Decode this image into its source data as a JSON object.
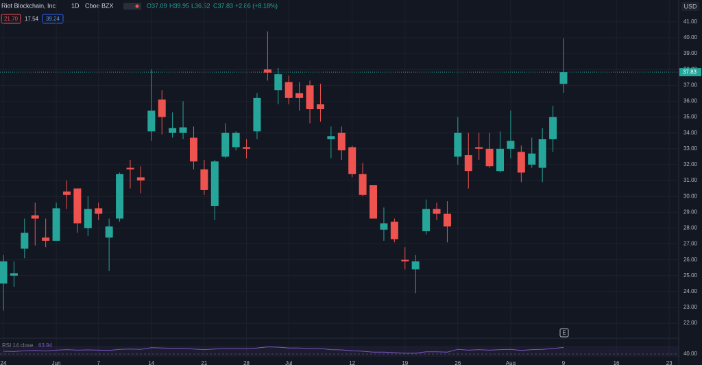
{
  "header": {
    "symbol": "Riot Blockchain, Inc",
    "interval": "1D",
    "exchange": "Cboe BZX",
    "open": "O37.09",
    "high": "H39.95",
    "low": "L36.52",
    "close": "C37.83",
    "change": "+2.86 (+8.18%)",
    "badges": [
      "21.70",
      "17.54",
      "39.24"
    ],
    "currency": "USD"
  },
  "chart_data": {
    "type": "candlestick",
    "colors": {
      "up": "#26a69a",
      "down": "#ef5350"
    },
    "open": [
      24.5,
      25.0,
      26.7,
      28.8,
      27.4,
      27.2,
      30.3,
      30.5,
      28.0,
      29.25,
      27.4,
      28.6,
      31.8,
      31.2,
      34.1,
      36.1,
      34.0,
      34.0,
      33.7,
      31.7,
      29.4,
      32.5,
      33.1,
      33.1,
      34.1,
      38.0,
      36.7,
      37.2,
      36.5,
      37.0,
      35.8,
      33.6,
      34.0,
      33.1,
      31.4,
      30.7,
      27.9,
      28.4,
      26.0,
      25.4,
      27.8,
      29.2,
      28.9,
      32.5,
      32.6,
      33.1,
      33.0,
      31.6,
      33.0,
      32.8,
      32.0,
      31.8,
      33.6,
      37.09
    ],
    "high": [
      26.3,
      25.9,
      28.6,
      29.6,
      28.6,
      29.6,
      31.0,
      30.5,
      30.0,
      29.6,
      28.6,
      31.5,
      32.3,
      31.9,
      38.0,
      36.7,
      35.3,
      36.0,
      34.4,
      32.3,
      32.3,
      34.6,
      34.1,
      33.6,
      36.5,
      40.4,
      38.1,
      37.6,
      37.2,
      37.3,
      37.1,
      34.4,
      34.4,
      33.2,
      32.1,
      30.7,
      29.3,
      28.6,
      26.8,
      26.3,
      29.8,
      29.6,
      29.7,
      35.0,
      34.0,
      34.0,
      34.0,
      34.1,
      35.4,
      33.2,
      33.7,
      34.3,
      35.7,
      39.95
    ],
    "low": [
      22.8,
      24.3,
      26.1,
      26.9,
      26.8,
      27.2,
      29.2,
      27.7,
      27.5,
      28.5,
      25.3,
      28.4,
      30.5,
      30.2,
      33.5,
      33.9,
      33.7,
      33.6,
      31.7,
      30.1,
      28.5,
      32.4,
      32.9,
      32.4,
      33.6,
      37.3,
      35.8,
      35.8,
      35.4,
      34.6,
      34.7,
      32.4,
      32.3,
      31.2,
      30.0,
      28.6,
      27.2,
      27.1,
      25.4,
      23.9,
      27.6,
      28.5,
      27.1,
      32.0,
      30.5,
      32.3,
      31.8,
      31.5,
      32.4,
      30.9,
      31.8,
      30.9,
      32.8,
      36.52
    ],
    "close": [
      25.9,
      25.15,
      27.7,
      28.6,
      27.2,
      29.25,
      30.1,
      28.3,
      29.2,
      28.9,
      28.1,
      31.4,
      31.7,
      31.0,
      35.4,
      35.0,
      34.3,
      34.35,
      32.2,
      30.4,
      32.2,
      34.0,
      34.0,
      33.0,
      36.2,
      37.8,
      37.7,
      36.2,
      36.2,
      35.5,
      35.5,
      33.8,
      32.9,
      31.4,
      30.1,
      28.6,
      28.3,
      27.3,
      25.9,
      25.9,
      29.2,
      28.9,
      28.1,
      34.0,
      31.6,
      33.0,
      31.9,
      33.0,
      33.5,
      31.5,
      32.7,
      33.6,
      35.0,
      37.83
    ],
    "last_price": {
      "value": 37.83,
      "label": "37.83"
    },
    "ylim": [
      21.4,
      41.6
    ],
    "yticks": [
      {
        "value": 22,
        "label": "22.00"
      },
      {
        "value": 23,
        "label": "23.00"
      },
      {
        "value": 24,
        "label": "24.00"
      },
      {
        "value": 25,
        "label": "25.00"
      },
      {
        "value": 26,
        "label": "26.00"
      },
      {
        "value": 27,
        "label": "27.00"
      },
      {
        "value": 28,
        "label": "28.00"
      },
      {
        "value": 29,
        "label": "29.00"
      },
      {
        "value": 30,
        "label": "30.00"
      },
      {
        "value": 31,
        "label": "31.00"
      },
      {
        "value": 32,
        "label": "32.00"
      },
      {
        "value": 33,
        "label": "33.00"
      },
      {
        "value": 34,
        "label": "34.00"
      },
      {
        "value": 35,
        "label": "35.00"
      },
      {
        "value": 36,
        "label": "36.00"
      },
      {
        "value": 37,
        "label": "37.00"
      },
      {
        "value": 38,
        "label": "38.00"
      },
      {
        "value": 39,
        "label": "39.00"
      },
      {
        "value": 40,
        "label": "40.00"
      },
      {
        "value": 41,
        "label": "41.00"
      }
    ],
    "x_labels": [
      "24",
      "Jun",
      "7",
      "14",
      "21",
      "28",
      "Jul",
      "12",
      "19",
      "26",
      "Aug",
      "9",
      "16",
      "23"
    ],
    "grid": true,
    "rsi": {
      "label": "RSI 14 close",
      "value_label": "63.94",
      "color": "#7e57c2",
      "values": [
        50,
        49,
        52,
        53,
        51,
        54,
        56,
        54,
        55,
        54,
        53,
        57,
        58,
        57,
        63,
        62,
        61,
        61,
        58,
        56,
        58,
        60,
        60,
        59,
        62,
        66,
        65,
        62,
        62,
        60,
        60,
        56,
        55,
        52,
        50,
        47,
        47,
        45,
        43,
        43,
        48,
        48,
        47,
        57,
        54,
        56,
        54,
        56,
        57,
        53,
        56,
        57,
        60,
        63.94
      ],
      "ylim": [
        30,
        90
      ],
      "yticks": [
        {
          "value": 40,
          "label": "40.00"
        }
      ]
    },
    "marker": "E"
  }
}
